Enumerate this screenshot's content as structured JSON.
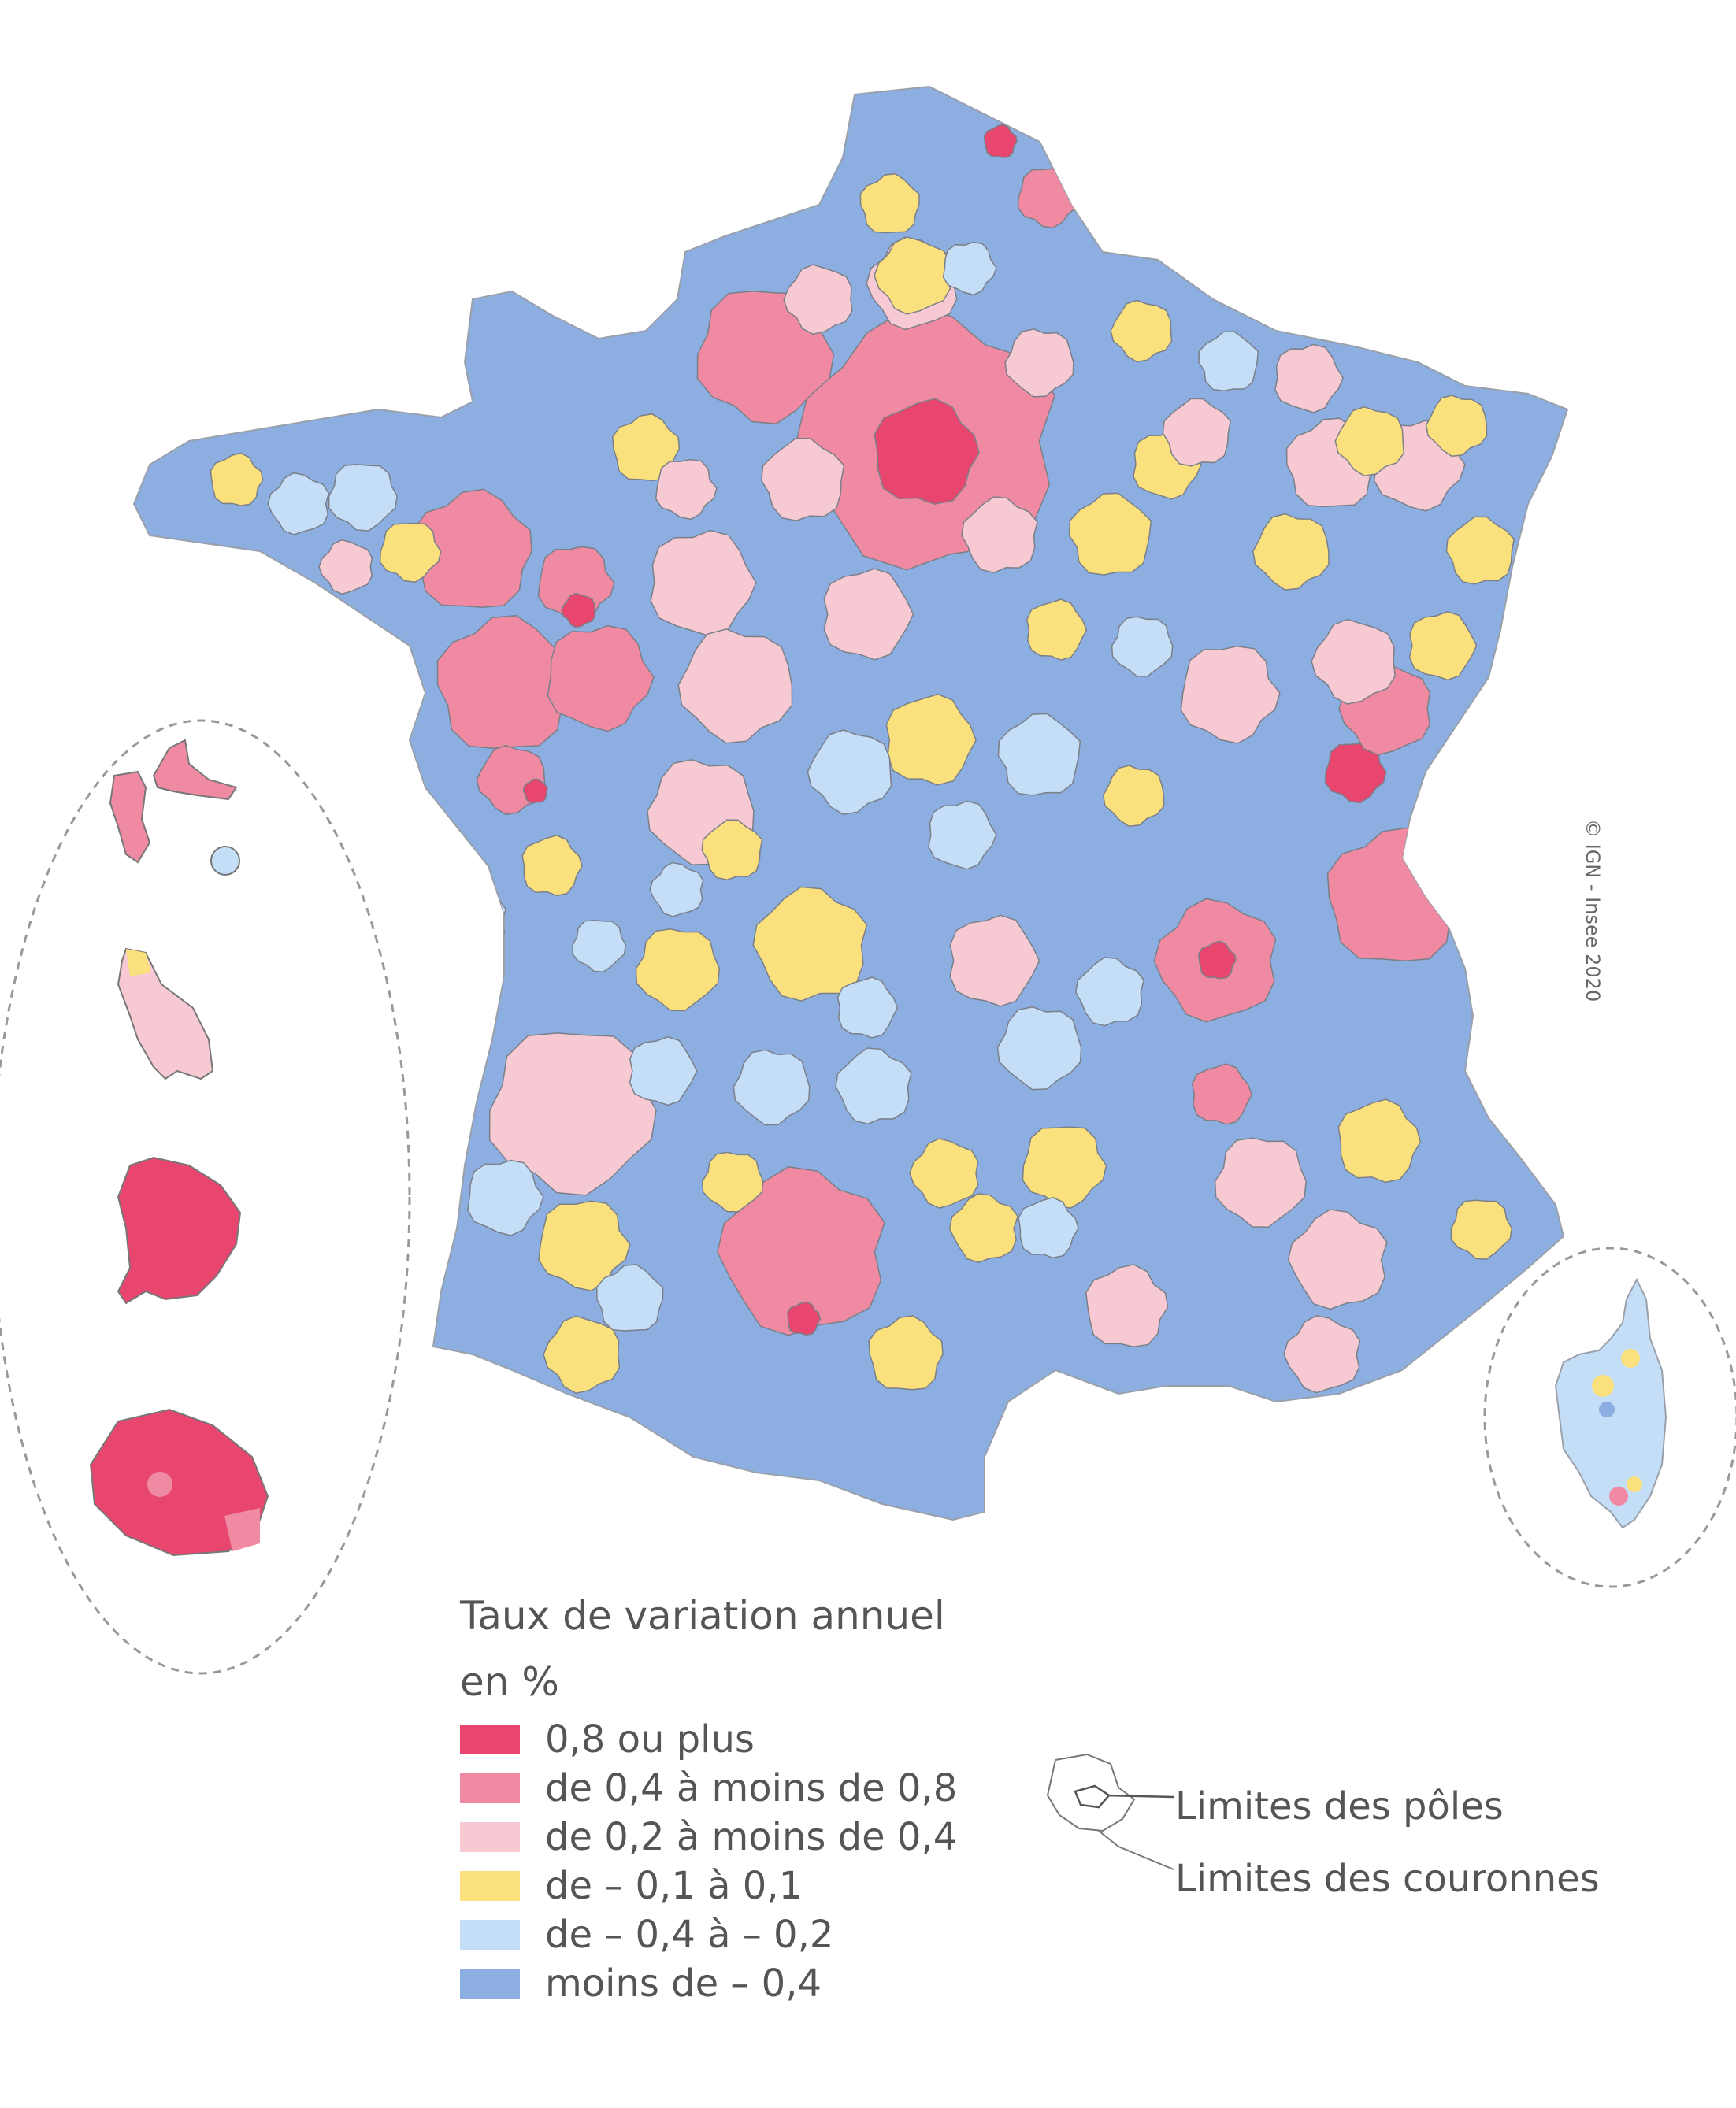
{
  "colors": {
    "c08plus": "#e8466f",
    "c04_08": "#ef8aa2",
    "c02_04": "#f7c9d3",
    "cneg01_01": "#fbe07e",
    "cneg04_02": "#c5def8",
    "cneg04": "#8caee0",
    "border": "#4a4a4a"
  },
  "legend": {
    "title_line1": "Taux de variation annuel",
    "title_line2": "en %",
    "classes": [
      {
        "label": "0,8 ou plus",
        "color": "#e8466f"
      },
      {
        "label": "de 0,4 à moins de 0,8",
        "color": "#ef8aa2"
      },
      {
        "label": "de 0,2 à moins de 0,4",
        "color": "#f7c9d3"
      },
      {
        "label": "de – 0,1 à 0,1",
        "color": "#fbe07e"
      },
      {
        "label": "de – 0,4 à – 0,2",
        "color": "#c5def8"
      },
      {
        "label": "moins de – 0,4",
        "color": "#8caee0"
      }
    ]
  },
  "limits": {
    "poles": "Limites des pôles",
    "couronnes": "Limites des couronnes"
  },
  "copyright": "© IGN - Insee 2020"
}
